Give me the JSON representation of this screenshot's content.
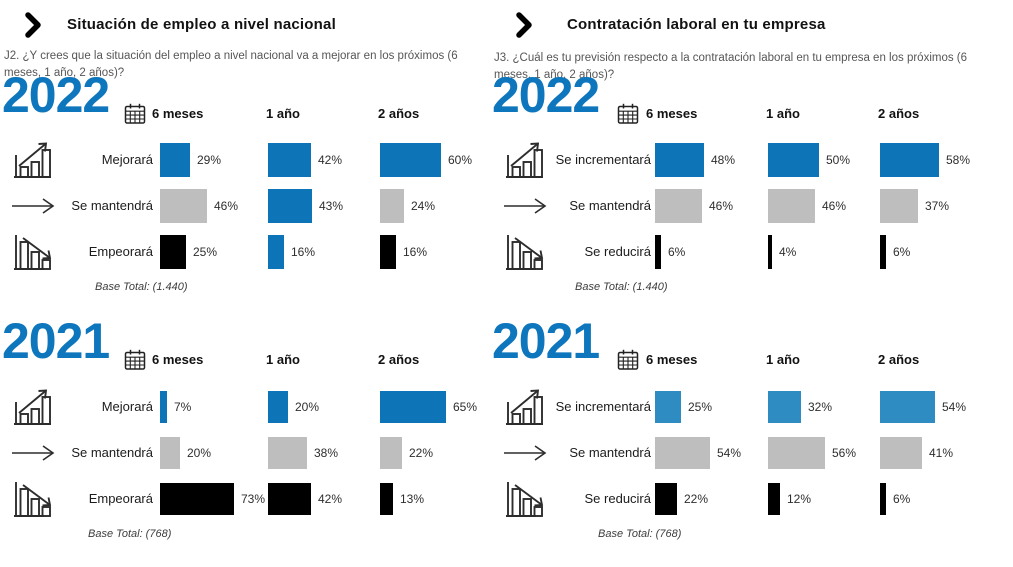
{
  "colors": {
    "accent_blue": "#0E76BC",
    "blue": "#0E74B8",
    "light_blue": "#2E8CC3",
    "gray": "#BEBEBE",
    "black": "#000000"
  },
  "chart_data": {
    "type": "bar",
    "unit": "%",
    "orientation": "horizontal",
    "panels": [
      {
        "title": "Situación de empleo a nivel nacional",
        "question": "J2. ¿Y crees que la situación del empleo a nivel nacional va a mejorar en los próximos (6 meses, 1 año, 2 años)?",
        "years": [
          {
            "year": "2022",
            "columns": [
              "6 meses",
              "1 año",
              "2 años"
            ],
            "rows": [
              {
                "label": "Mejorará",
                "icon": "chart-up-icon",
                "values": [
                  29,
                  42,
                  60
                ],
                "colors": [
                  "blue",
                  "blue",
                  "blue"
                ]
              },
              {
                "label": "Se mantendrá",
                "icon": "arrow-right-icon",
                "values": [
                  46,
                  43,
                  24
                ],
                "colors": [
                  "gray",
                  "blue",
                  "gray"
                ]
              },
              {
                "label": "Empeorará",
                "icon": "chart-down-icon",
                "values": [
                  25,
                  16,
                  16
                ],
                "colors": [
                  "black",
                  "blue",
                  "black"
                ]
              }
            ],
            "base_total": "Base Total: (1.440)"
          },
          {
            "year": "2021",
            "columns": [
              "6 meses",
              "1 año",
              "2 años"
            ],
            "rows": [
              {
                "label": "Mejorará",
                "icon": "chart-up-icon",
                "values": [
                  7,
                  20,
                  65
                ],
                "colors": [
                  "blue",
                  "blue",
                  "blue"
                ]
              },
              {
                "label": "Se mantendrá",
                "icon": "arrow-right-icon",
                "values": [
                  20,
                  38,
                  22
                ],
                "colors": [
                  "gray",
                  "gray",
                  "gray"
                ]
              },
              {
                "label": "Empeorará",
                "icon": "chart-down-icon",
                "values": [
                  73,
                  42,
                  13
                ],
                "colors": [
                  "black",
                  "black",
                  "black"
                ]
              }
            ],
            "base_total": "Base Total: (768)"
          }
        ]
      },
      {
        "title": "Contratación laboral en tu empresa",
        "question": "J3. ¿Cuál es tu previsión respecto a la contratación laboral en tu empresa en los próximos (6 meses, 1 año, 2 años)?",
        "years": [
          {
            "year": "2022",
            "columns": [
              "6 meses",
              "1 año",
              "2 años"
            ],
            "rows": [
              {
                "label": "Se incrementará",
                "icon": "chart-up-icon",
                "values": [
                  48,
                  50,
                  58
                ],
                "colors": [
                  "blue",
                  "blue",
                  "blue"
                ]
              },
              {
                "label": "Se mantendrá",
                "icon": "arrow-right-icon",
                "values": [
                  46,
                  46,
                  37
                ],
                "colors": [
                  "gray",
                  "gray",
                  "gray"
                ]
              },
              {
                "label": "Se reducirá",
                "icon": "chart-down-icon",
                "values": [
                  6,
                  4,
                  6
                ],
                "colors": [
                  "black",
                  "black",
                  "black"
                ]
              }
            ],
            "base_total": "Base Total: (1.440)"
          },
          {
            "year": "2021",
            "columns": [
              "6 meses",
              "1 año",
              "2 años"
            ],
            "rows": [
              {
                "label": "Se incrementará",
                "icon": "chart-up-icon",
                "values": [
                  25,
                  32,
                  54
                ],
                "colors": [
                  "light_blue",
                  "light_blue",
                  "light_blue"
                ]
              },
              {
                "label": "Se mantendrá",
                "icon": "arrow-right-icon",
                "values": [
                  54,
                  56,
                  41
                ],
                "colors": [
                  "gray",
                  "gray",
                  "gray"
                ]
              },
              {
                "label": "Se reducirá",
                "icon": "chart-down-icon",
                "values": [
                  22,
                  12,
                  6
                ],
                "colors": [
                  "black",
                  "black",
                  "black"
                ]
              }
            ],
            "base_total": "Base Total: (768)"
          }
        ]
      }
    ]
  }
}
